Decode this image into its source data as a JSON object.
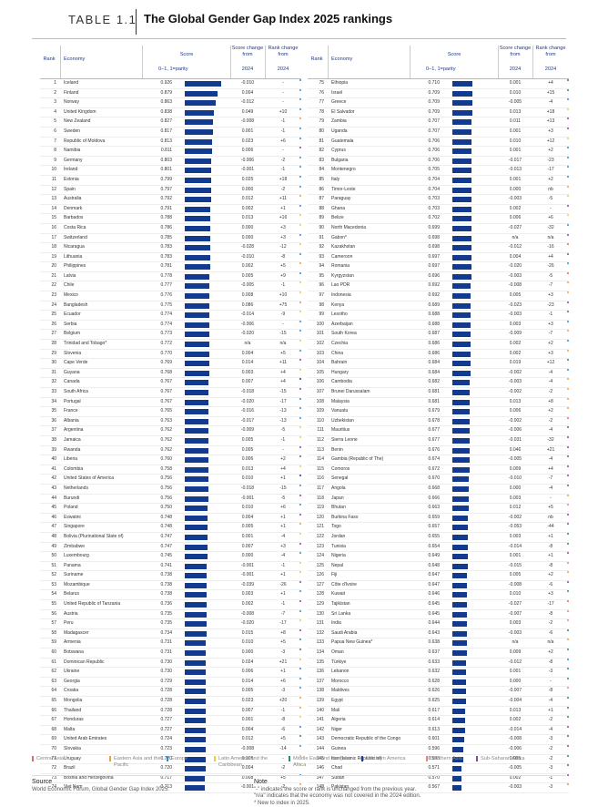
{
  "header": {
    "label": "TABLE 1.1",
    "title": "The Global Gender Gap Index 2025 rankings"
  },
  "columns": {
    "rank": "Rank",
    "economy": "Economy",
    "score": "Score",
    "scale": "0–1, 1=parity",
    "change": "Score change from",
    "change_year": "2024",
    "rank_change": "Rank change from",
    "rank_change_year": "2024"
  },
  "colors": {
    "bar": "#123a8f",
    "central_asia": "#e06b6b",
    "east_asia_pacific": "#f0a030",
    "europe": "#2a8fd0",
    "latin_america": "#f5c842",
    "mena": "#2a8a6a",
    "north_america": "#1d3c8f",
    "south_asia": "#e08a7a",
    "ssa": "#8a4a9a"
  },
  "chart_data": {
    "type": "table",
    "left": [
      [
        "1",
        "Iceland",
        "0.926",
        "-0.010",
        "-",
        "europe"
      ],
      [
        "2",
        "Finland",
        "0.879",
        "0.004",
        "-",
        "europe"
      ],
      [
        "3",
        "Norway",
        "0.863",
        "-0.012",
        "-",
        "europe"
      ],
      [
        "4",
        "United Kingdom",
        "0.838",
        "0.049",
        "+10",
        "europe"
      ],
      [
        "5",
        "New Zealand",
        "0.827",
        "-0.008",
        "-1",
        "east_asia_pacific"
      ],
      [
        "6",
        "Sweden",
        "0.817",
        "0.001",
        "-1",
        "europe"
      ],
      [
        "7",
        "Republic of Moldova",
        "0.813",
        "0.023",
        "+6",
        "europe"
      ],
      [
        "8",
        "Namibia",
        "0.811",
        "0.006",
        "-",
        "ssa"
      ],
      [
        "9",
        "Germany",
        "0.803",
        "-0.006",
        "-2",
        "europe"
      ],
      [
        "10",
        "Ireland",
        "0.801",
        "-0.001",
        "-1",
        "europe"
      ],
      [
        "11",
        "Estonia",
        "0.799",
        "0.025",
        "+18",
        "europe"
      ],
      [
        "12",
        "Spain",
        "0.797",
        "0.000",
        "-2",
        "europe"
      ],
      [
        "13",
        "Australia",
        "0.792",
        "0.012",
        "+11",
        "east_asia_pacific"
      ],
      [
        "14",
        "Denmark",
        "0.791",
        "0.002",
        "+1",
        "europe"
      ],
      [
        "15",
        "Barbados",
        "0.788",
        "0.013",
        "+16",
        "latin_america"
      ],
      [
        "16",
        "Costa Rica",
        "0.786",
        "0.000",
        "+3",
        "latin_america"
      ],
      [
        "17",
        "Switzerland",
        "0.785",
        "0.000",
        "+3",
        "europe"
      ],
      [
        "18",
        "Nicaragua",
        "0.783",
        "-0.028",
        "-12",
        "latin_america"
      ],
      [
        "19",
        "Lithuania",
        "0.783",
        "-0.010",
        "-8",
        "europe"
      ],
      [
        "20",
        "Philippines",
        "0.781",
        "0.002",
        "+5",
        "east_asia_pacific"
      ],
      [
        "21",
        "Latvia",
        "0.778",
        "0.005",
        "+9",
        "europe"
      ],
      [
        "22",
        "Chile",
        "0.777",
        "-0.005",
        "-1",
        "latin_america"
      ],
      [
        "23",
        "Mexico",
        "0.776",
        "0.008",
        "+10",
        "latin_america"
      ],
      [
        "24",
        "Bangladesh",
        "0.775",
        "0.086",
        "+75",
        "south_asia"
      ],
      [
        "25",
        "Ecuador",
        "0.774",
        "-0.014",
        "-9",
        "latin_america"
      ],
      [
        "26",
        "Serbia",
        "0.774",
        "-0.006",
        "-",
        "europe"
      ],
      [
        "27",
        "Belgium",
        "0.773",
        "-0.020",
        "-15",
        "europe"
      ],
      [
        "28",
        "Trinidad and Tobago*",
        "0.772",
        "n/a",
        "n/a",
        "latin_america"
      ],
      [
        "29",
        "Slovenia",
        "0.770",
        "0.004",
        "+5",
        "europe"
      ],
      [
        "30",
        "Cape Verde",
        "0.769",
        "0.014",
        "+11",
        "ssa"
      ],
      [
        "31",
        "Guyana",
        "0.768",
        "0.003",
        "+4",
        "latin_america"
      ],
      [
        "32",
        "Canada",
        "0.767",
        "0.007",
        "+4",
        "north_america"
      ],
      [
        "33",
        "South Africa",
        "0.767",
        "-0.018",
        "-15",
        "ssa"
      ],
      [
        "34",
        "Portugal",
        "0.767",
        "-0.020",
        "-17",
        "europe"
      ],
      [
        "35",
        "France",
        "0.765",
        "-0.016",
        "-13",
        "europe"
      ],
      [
        "36",
        "Albania",
        "0.763",
        "-0.017",
        "-13",
        "europe"
      ],
      [
        "37",
        "Argentina",
        "0.762",
        "-0.009",
        "-5",
        "latin_america"
      ],
      [
        "38",
        "Jamaica",
        "0.762",
        "0.005",
        "-1",
        "latin_america"
      ],
      [
        "39",
        "Rwanda",
        "0.762",
        "0.005",
        "-",
        "ssa"
      ],
      [
        "40",
        "Liberia",
        "0.760",
        "0.006",
        "+2",
        "ssa"
      ],
      [
        "41",
        "Colombia",
        "0.758",
        "0.013",
        "+4",
        "latin_america"
      ],
      [
        "42",
        "United States of America",
        "0.756",
        "0.010",
        "+1",
        "north_america"
      ],
      [
        "43",
        "Netherlands",
        "0.756",
        "-0.018",
        "-15",
        "europe"
      ],
      [
        "44",
        "Burundi",
        "0.756",
        "-0.001",
        "-5",
        "ssa"
      ],
      [
        "45",
        "Poland",
        "0.750",
        "0.010",
        "+6",
        "europe"
      ],
      [
        "46",
        "Eswatini",
        "0.748",
        "0.004",
        "+1",
        "ssa"
      ],
      [
        "47",
        "Singapore",
        "0.748",
        "0.005",
        "+1",
        "east_asia_pacific"
      ],
      [
        "48",
        "Bolivia (Plurinational State of)",
        "0.747",
        "0.001",
        "-4",
        "latin_america"
      ],
      [
        "49",
        "Zimbabwe",
        "0.747",
        "0.007",
        "+3",
        "ssa"
      ],
      [
        "50",
        "Luxembourg",
        "0.745",
        "0.000",
        "-4",
        "europe"
      ],
      [
        "51",
        "Panama",
        "0.741",
        "-0.001",
        "-1",
        "latin_america"
      ],
      [
        "52",
        "Suriname",
        "0.738",
        "-0.001",
        "+1",
        "latin_america"
      ],
      [
        "53",
        "Mozambique",
        "0.738",
        "-0.039",
        "-26",
        "ssa"
      ],
      [
        "54",
        "Belarus",
        "0.738",
        "0.003",
        "+1",
        "europe"
      ],
      [
        "55",
        "United Republic of Tanzania",
        "0.736",
        "0.002",
        "-1",
        "ssa"
      ],
      [
        "56",
        "Austria",
        "0.735",
        "-0.008",
        "-7",
        "europe"
      ],
      [
        "57",
        "Peru",
        "0.735",
        "-0.020",
        "-17",
        "latin_america"
      ],
      [
        "58",
        "Madagascer",
        "0.734",
        "0.015",
        "+8",
        "ssa"
      ],
      [
        "59",
        "Armenia",
        "0.731",
        "0.010",
        "+5",
        "europe"
      ],
      [
        "60",
        "Botswana",
        "0.731",
        "0.000",
        "-3",
        "ssa"
      ],
      [
        "61",
        "Dominican Republic",
        "0.730",
        "0.024",
        "+21",
        "latin_america"
      ],
      [
        "62",
        "Ukraine",
        "0.730",
        "0.006",
        "+1",
        "europe"
      ],
      [
        "63",
        "Georgia",
        "0.729",
        "0.014",
        "+6",
        "europe"
      ],
      [
        "64",
        "Croatia",
        "0.728",
        "0.005",
        "-3",
        "europe"
      ],
      [
        "65",
        "Mongolia",
        "0.728",
        "0.023",
        "+20",
        "east_asia_pacific"
      ],
      [
        "66",
        "Thailand",
        "0.728",
        "0.007",
        "-1",
        "east_asia_pacific"
      ],
      [
        "67",
        "Honduras",
        "0.727",
        "0.001",
        "-8",
        "latin_america"
      ],
      [
        "68",
        "Malta",
        "0.727",
        "0.004",
        "-6",
        "europe"
      ],
      [
        "69",
        "United Arab Emirates",
        "0.724",
        "0.012",
        "+5",
        "mena"
      ],
      [
        "70",
        "Slovakia",
        "0.723",
        "-0.008",
        "-14",
        "europe"
      ],
      [
        "71",
        "Uruguay",
        "0.720",
        "0.005",
        "-",
        "latin_america"
      ],
      [
        "72",
        "Brazil",
        "0.720",
        "0.004",
        "-2",
        "latin_america"
      ],
      [
        "73",
        "Bosnia and Herzegovina",
        "0.717",
        "0.008",
        "+5",
        "europe"
      ],
      [
        "74",
        "Viet Nam",
        "0.713",
        "-0.001",
        "-2",
        "east_asia_pacific"
      ]
    ],
    "right": [
      [
        "75",
        "Ethiopia",
        "0.710",
        "0.001",
        "+4",
        "ssa"
      ],
      [
        "76",
        "Israel",
        "0.709",
        "0.010",
        "+15",
        "mena"
      ],
      [
        "77",
        "Greece",
        "0.709",
        "-0.005",
        "-4",
        "europe"
      ],
      [
        "78",
        "El Salvador",
        "0.709",
        "0.013",
        "+18",
        "latin_america"
      ],
      [
        "79",
        "Zambia",
        "0.707",
        "0.011",
        "+13",
        "ssa"
      ],
      [
        "80",
        "Uganda",
        "0.707",
        "0.001",
        "+3",
        "ssa"
      ],
      [
        "81",
        "Guatemala",
        "0.706",
        "0.010",
        "+12",
        "latin_america"
      ],
      [
        "82",
        "Cyprus",
        "0.706",
        "0.001",
        "+2",
        "europe"
      ],
      [
        "83",
        "Bulgaria",
        "0.706",
        "-0.017",
        "-23",
        "europe"
      ],
      [
        "84",
        "Montenegro",
        "0.705",
        "-0.013",
        "-17",
        "europe"
      ],
      [
        "85",
        "Italy",
        "0.704",
        "0.001",
        "+2",
        "europe"
      ],
      [
        "86",
        "Timor-Leste",
        "0.704",
        "0.000",
        "nb",
        "east_asia_pacific"
      ],
      [
        "87",
        "Paraguay",
        "0.703",
        "-0.003",
        "-5",
        "latin_america"
      ],
      [
        "88",
        "Ghana",
        "0.703",
        "0.002",
        "-",
        "ssa"
      ],
      [
        "89",
        "Belize",
        "0.702",
        "0.006",
        "+6",
        "latin_america"
      ],
      [
        "90",
        "North Macedonia",
        "0.699",
        "-0.027",
        "-32",
        "europe"
      ],
      [
        "91",
        "Gabon*",
        "0.698",
        "n/a",
        "n/a",
        "ssa"
      ],
      [
        "92",
        "Kazakhstan",
        "0.698",
        "-0.012",
        "-16",
        "central_asia"
      ],
      [
        "93",
        "Cameroon",
        "0.697",
        "0.004",
        "+4",
        "ssa"
      ],
      [
        "94",
        "Romania",
        "0.697",
        "-0.020",
        "-26",
        "europe"
      ],
      [
        "95",
        "Kyrgyzstan",
        "0.696",
        "-0.003",
        "-5",
        "central_asia"
      ],
      [
        "96",
        "Lao PDR",
        "0.692",
        "-0.008",
        "-7",
        "east_asia_pacific"
      ],
      [
        "97",
        "Indonesia",
        "0.692",
        "0.005",
        "+3",
        "east_asia_pacific"
      ],
      [
        "98",
        "Kenya",
        "0.689",
        "-0.023",
        "-23",
        "ssa"
      ],
      [
        "99",
        "Lesotho",
        "0.688",
        "-0.003",
        "-1",
        "ssa"
      ],
      [
        "100",
        "Azerbaijan",
        "0.688",
        "0.003",
        "+3",
        "europe"
      ],
      [
        "101",
        "South Korea",
        "0.687",
        "-0.009",
        "-7",
        "east_asia_pacific"
      ],
      [
        "102",
        "Czechia",
        "0.686",
        "0.002",
        "+2",
        "europe"
      ],
      [
        "103",
        "China",
        "0.686",
        "0.002",
        "+3",
        "east_asia_pacific"
      ],
      [
        "104",
        "Bahrain",
        "0.684",
        "0.019",
        "+12",
        "mena"
      ],
      [
        "105",
        "Hungary",
        "0.684",
        "-0.002",
        "-4",
        "europe"
      ],
      [
        "106",
        "Cambodia",
        "0.682",
        "-0.003",
        "-4",
        "east_asia_pacific"
      ],
      [
        "107",
        "Brunei Darussalam",
        "0.681",
        "-0.002",
        "-2",
        "east_asia_pacific"
      ],
      [
        "108",
        "Malaysia",
        "0.681",
        "0.013",
        "+8",
        "east_asia_pacific"
      ],
      [
        "109",
        "Vanuatu",
        "0.679",
        "0.006",
        "+2",
        "east_asia_pacific"
      ],
      [
        "110",
        "Uzbekistan",
        "0.678",
        "-0.002",
        "-2",
        "central_asia"
      ],
      [
        "111",
        "Mauritius",
        "0.677",
        "-0.006",
        "-4",
        "ssa"
      ],
      [
        "112",
        "Sierra Leone",
        "0.677",
        "-0.031",
        "-32",
        "ssa"
      ],
      [
        "113",
        "Benin",
        "0.676",
        "0.046",
        "+21",
        "ssa"
      ],
      [
        "114",
        "Gambia (Republic of The)",
        "0.674",
        "-0.005",
        "-4",
        "ssa"
      ],
      [
        "115",
        "Comoros",
        "0.672",
        "0.009",
        "+4",
        "ssa"
      ],
      [
        "116",
        "Senegal",
        "0.670",
        "-0.010",
        "-7",
        "ssa"
      ],
      [
        "117",
        "Angola",
        "0.668",
        "0.000",
        "-4",
        "ssa"
      ],
      [
        "118",
        "Japan",
        "0.666",
        "0.003",
        "-",
        "east_asia_pacific"
      ],
      [
        "119",
        "Bhutan",
        "0.663",
        "0.012",
        "+5",
        "south_asia"
      ],
      [
        "120",
        "Burkina Faso",
        "0.659",
        "-0.002",
        "nb",
        "ssa"
      ],
      [
        "121",
        "Togo",
        "0.657",
        "-0.053",
        "-44",
        "ssa"
      ],
      [
        "122",
        "Jordan",
        "0.655",
        "0.003",
        "+1",
        "mena"
      ],
      [
        "123",
        "Tunisia",
        "0.654",
        "-0.014",
        "-8",
        "mena"
      ],
      [
        "124",
        "Nigeria",
        "0.649",
        "0.001",
        "+1",
        "ssa"
      ],
      [
        "125",
        "Nepal",
        "0.648",
        "-0.015",
        "-8",
        "south_asia"
      ],
      [
        "126",
        "Fiji",
        "0.647",
        "0.005",
        "+2",
        "east_asia_pacific"
      ],
      [
        "127",
        "Côte d'Ivoire",
        "0.647",
        "-0.008",
        "-6",
        "ssa"
      ],
      [
        "128",
        "Kuwait",
        "0.646",
        "0.010",
        "+3",
        "mena"
      ],
      [
        "129",
        "Tajikistan",
        "0.645",
        "-0.027",
        "-17",
        "central_asia"
      ],
      [
        "130",
        "Sri Lanka",
        "0.645",
        "-0.007",
        "-8",
        "south_asia"
      ],
      [
        "131",
        "India",
        "0.644",
        "0.003",
        "-2",
        "south_asia"
      ],
      [
        "132",
        "Saudi Arabia",
        "0.643",
        "-0.003",
        "-6",
        "mena"
      ],
      [
        "133",
        "Papua New Guinea*",
        "0.638",
        "n/a",
        "n/a",
        "east_asia_pacific"
      ],
      [
        "134",
        "Oman",
        "0.637",
        "0.009",
        "+2",
        "mena"
      ],
      [
        "135",
        "Türkiye",
        "0.633",
        "-0.012",
        "-8",
        "europe"
      ],
      [
        "136",
        "Lebanon",
        "0.632",
        "0.001",
        "-3",
        "mena"
      ],
      [
        "137",
        "Morocco",
        "0.628",
        "0.000",
        "-",
        "mena"
      ],
      [
        "138",
        "Maldives",
        "0.626",
        "-0.007",
        "-8",
        "south_asia"
      ],
      [
        "139",
        "Egypt",
        "0.625",
        "-0.004",
        "-4",
        "mena"
      ],
      [
        "140",
        "Mali",
        "0.617",
        "0.013",
        "+1",
        "ssa"
      ],
      [
        "141",
        "Algeria",
        "0.614",
        "0.002",
        "-2",
        "mena"
      ],
      [
        "142",
        "Niger",
        "0.613",
        "-0.014",
        "-4",
        "ssa"
      ],
      [
        "143",
        "Democratic Republic of the Congo",
        "0.601",
        "-0.008",
        "-3",
        "ssa"
      ],
      [
        "144",
        "Guinea",
        "0.596",
        "-0.006",
        "-2",
        "ssa"
      ],
      [
        "145",
        "Iran (Islamic Republic of)",
        "0.593",
        "0.005",
        "-2",
        "mena"
      ],
      [
        "146",
        "Chad",
        "0.571",
        "-0.005",
        "-3",
        "ssa"
      ],
      [
        "147",
        "Sudan",
        "0.570",
        "0.002",
        "-1",
        "ssa"
      ],
      [
        "148",
        "Pakistan",
        "0.567",
        "-0.003",
        "-3",
        "south_asia"
      ]
    ]
  },
  "legend": [
    {
      "key": "central_asia",
      "label": "Central Asia"
    },
    {
      "key": "east_asia_pacific",
      "label": "Eastern Asia and the Pacific"
    },
    {
      "key": "europe",
      "label": "Europe"
    },
    {
      "key": "latin_america",
      "label": "Latin America and the Caribbean"
    },
    {
      "key": "mena",
      "label": "Middle East and Northern Africa"
    },
    {
      "key": "north_america",
      "label": "Northern America"
    },
    {
      "key": "south_asia",
      "label": "Southern Asia"
    },
    {
      "key": "ssa",
      "label": "Sub-Saharan Africa"
    }
  ],
  "footer": {
    "source_heading": "Source",
    "source_text": "World Economic Forum, Global Gender Gap Index 2025.",
    "note_heading": "Note",
    "notes": [
      "\"-\" indicates the score or rank is unchanged from the previous year.",
      "\"n/a\" indicates that the economy was not covered in the 2024 edition.",
      "* New to index in 2025."
    ]
  }
}
